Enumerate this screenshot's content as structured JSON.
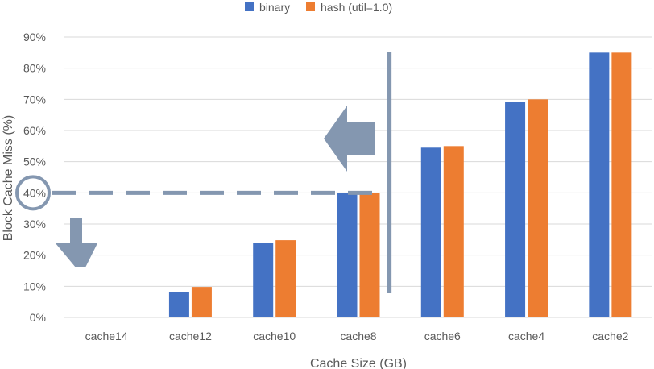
{
  "chart_data": {
    "type": "bar",
    "xlabel": "Cache Size (GB)",
    "ylabel": "Block Cache Miss (%)",
    "ylim": [
      0,
      90
    ],
    "yticks": [
      "0%",
      "10%",
      "20%",
      "30%",
      "40%",
      "50%",
      "60%",
      "70%",
      "80%",
      "90%"
    ],
    "categories": [
      "cache14",
      "cache12",
      "cache10",
      "cache8",
      "cache6",
      "cache4",
      "cache2"
    ],
    "series": [
      {
        "name": "binary",
        "color": "#4472C4",
        "values": [
          0,
          8.2,
          23.8,
          40,
          54.5,
          69.3,
          85
        ]
      },
      {
        "name": "hash (util=1.0)",
        "color": "#ED7D31",
        "values": [
          0,
          9.8,
          24.8,
          40,
          55,
          70,
          85
        ]
      }
    ],
    "grid": true,
    "legend_position": "top",
    "annotations": {
      "threshold_value": 40,
      "threshold_style": "dashed gray line with circle at axis",
      "arrows": [
        "left",
        "down"
      ],
      "vertical_separator": "between cache8 and cache6",
      "annotation_color": "#8497B0"
    }
  }
}
